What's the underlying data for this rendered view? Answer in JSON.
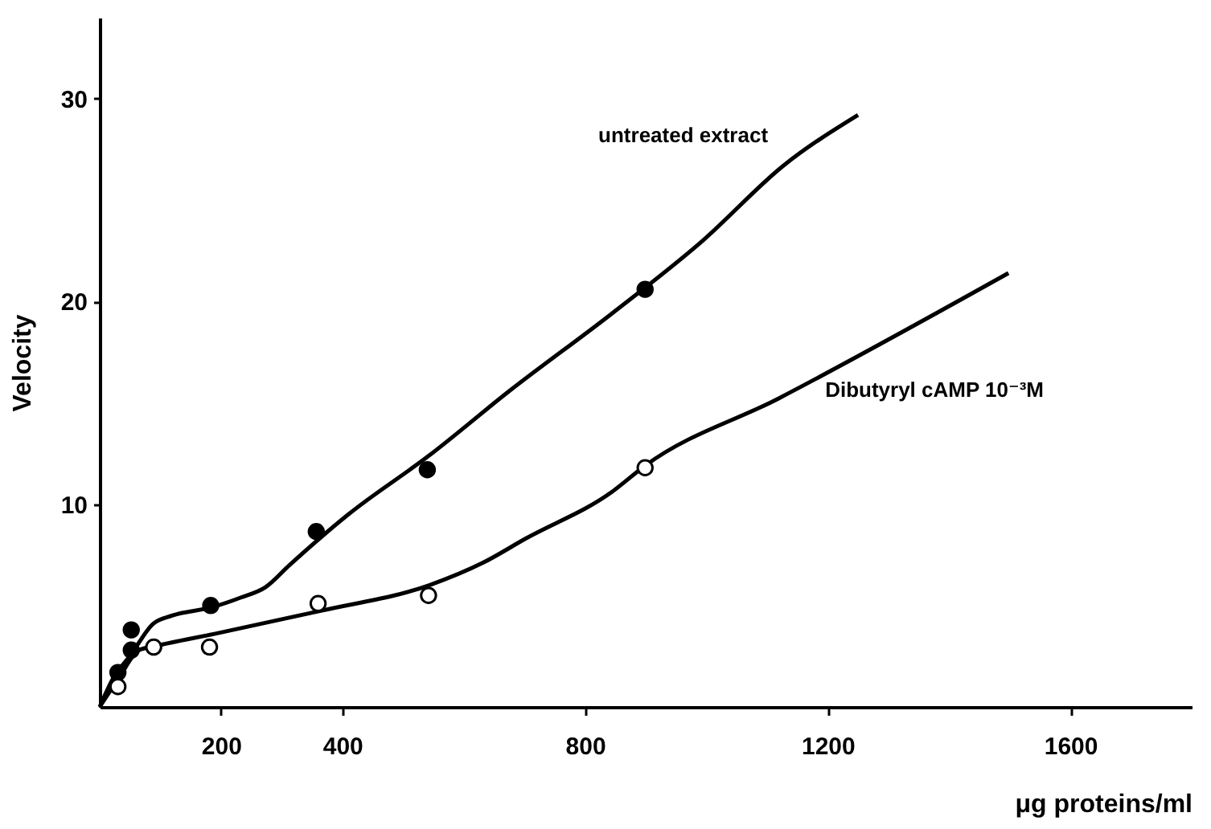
{
  "chart_data": {
    "type": "scatter",
    "xlabel": "μg proteins/ml",
    "ylabel": "Velocity",
    "xlim": [
      0,
      1800
    ],
    "ylim": [
      0,
      34
    ],
    "xticks": [
      200,
      400,
      800,
      1200,
      1600
    ],
    "yticks": [
      10,
      20,
      30
    ],
    "grid": false,
    "series": [
      {
        "marker": "circle",
        "color": "#000000",
        "x": [
          30,
          52,
          52,
          183,
          357,
          540,
          899
        ],
        "values": [
          1.7,
          2.8,
          3.8,
          5.0,
          8.65,
          11.7,
          20.6
        ]
      },
      {
        "marker": "circle",
        "color": "#000000",
        "x": [
          30,
          89,
          181,
          360,
          542,
          899
        ],
        "values": [
          1.0,
          2.95,
          2.95,
          5.1,
          5.5,
          11.8
        ]
      },
      {
        "type": "line",
        "marker": "none",
        "name": "untreated extract",
        "color": "#000000",
        "x": [
          0,
          21,
          52,
          88,
          119,
          183,
          233,
          273,
          313,
          410,
          543,
          676,
          844,
          994,
          1127,
          1250
        ],
        "values": [
          0,
          1.35,
          2.6,
          4.1,
          4.5,
          4.9,
          5.4,
          5.9,
          7.0,
          9.5,
          12.4,
          15.6,
          19.4,
          23.0,
          26.7,
          29.2
        ]
      },
      {
        "type": "line",
        "marker": "none",
        "name": "Dibutyryl cAMP 10⁻³M",
        "color": "#000000",
        "x": [
          0,
          30,
          65,
          92,
          189,
          366,
          543,
          631,
          702,
          844,
          899,
          1118,
          1498
        ],
        "values": [
          0,
          1.35,
          2.8,
          3.0,
          3.6,
          4.75,
          6.0,
          7.1,
          8.3,
          10.6,
          11.9,
          15.2,
          21.4
        ]
      }
    ]
  }
}
